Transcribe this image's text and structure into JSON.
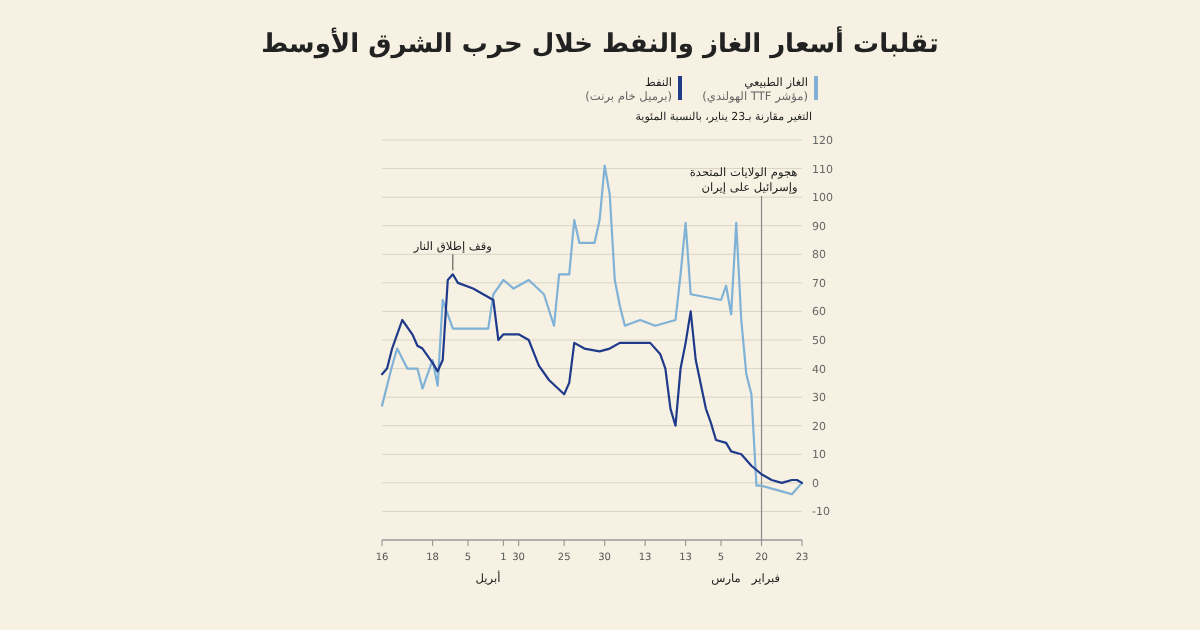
{
  "chart_data": {
    "type": "line",
    "title": "تقلبات أسعار الغاز والنفط خلال حرب الشرق الأوسط",
    "ylabel": "التغير مقارنة بـ23 يناير، بالنسبة المئوية",
    "xlim": [
      "--04-16",
      "--01-23"
    ],
    "xticks": [
      {
        "value": "--04-16",
        "label": "16"
      },
      {
        "value": "--04-06",
        "label": "18"
      },
      {
        "value": "--03-30",
        "label": "5"
      },
      {
        "value": "--03-23",
        "label": "1"
      },
      {
        "value": "--03-20",
        "label": "30"
      },
      {
        "value": "--03-11",
        "label": "25"
      },
      {
        "value": "--03-03",
        "label": "30"
      },
      {
        "value": "--02-23",
        "label": "13"
      },
      {
        "value": "--02-15",
        "label": "13"
      },
      {
        "value": "--02-08",
        "label": "5"
      },
      {
        "value": "--01-31",
        "label": "20"
      },
      {
        "value": "--01-23",
        "label": "23"
      }
    ],
    "ylim": [
      -20,
      120
    ],
    "yticks": [
      -10,
      0,
      10,
      20,
      30,
      40,
      50,
      60,
      70,
      80,
      90,
      100,
      110,
      120
    ],
    "grid": "y",
    "legend": "top right",
    "marker": "none",
    "line_style": "solid",
    "series": [
      {
        "name": "الغاز الطبيعي (مؤشر TTF الهولندي)",
        "color": "#7fb2d6",
        "x": [
          "--01-23",
          "--01-24",
          "--01-25",
          "--01-27",
          "--01-31",
          "--02-01",
          "--02-02",
          "--02-03",
          "--02-04",
          "--02-05",
          "--02-06",
          "--02-07",
          "--02-08",
          "--02-14",
          "--02-15",
          "--02-16",
          "--02-17",
          "--02-21",
          "--02-24",
          "--02-27",
          "--02-28",
          "--03-01",
          "--03-02",
          "--03-03",
          "--03-04",
          "--03-05",
          "--03-08",
          "--03-09",
          "--03-10",
          "--03-12",
          "--03-13",
          "--03-15",
          "--03-18",
          "--03-21",
          "--03-23",
          "--03-25",
          "--03-26",
          "--04-02",
          "--04-04",
          "--04-05",
          "--04-06",
          "--04-08",
          "--04-09",
          "--04-11",
          "--04-13",
          "--04-14",
          "--04-16"
        ],
        "values": [
          0,
          -2,
          -4,
          -3,
          -1,
          -1,
          31,
          38,
          57,
          91,
          59,
          69,
          64,
          66,
          91,
          73,
          57,
          55,
          57,
          55,
          62,
          71,
          101,
          111,
          92,
          84,
          84,
          92,
          73,
          73,
          55,
          66,
          71,
          68,
          71,
          66,
          54,
          54,
          64,
          34,
          43,
          33,
          40,
          40,
          47,
          41,
          27
        ]
      },
      {
        "name": "النفط (برميل خام برنت)",
        "color": "#1f3a8a",
        "x": [
          "--01-23",
          "--01-24",
          "--01-25",
          "--01-27",
          "--01-29",
          "--01-31",
          "--02-02",
          "--02-04",
          "--02-06",
          "--02-07",
          "--02-09",
          "--02-10",
          "--02-11",
          "--02-13",
          "--02-14",
          "--02-15",
          "--02-16",
          "--02-17",
          "--02-18",
          "--02-19",
          "--02-20",
          "--02-22",
          "--02-26",
          "--02-28",
          "--03-02",
          "--03-04",
          "--03-07",
          "--03-09",
          "--03-10",
          "--03-11",
          "--03-14",
          "--03-16",
          "--03-18",
          "--03-20",
          "--03-23",
          "--03-24",
          "--03-25",
          "--03-29",
          "--04-01",
          "--04-02",
          "--04-03",
          "--04-04",
          "--04-05",
          "--04-06",
          "--04-08",
          "--04-09",
          "--04-10",
          "--04-12",
          "--04-14",
          "--04-15",
          "--04-16"
        ],
        "values": [
          0,
          1,
          1,
          0,
          1,
          3,
          6,
          10,
          11,
          14,
          15,
          21,
          26,
          43,
          60,
          49,
          40,
          20,
          26,
          40,
          45,
          49,
          49,
          49,
          47,
          46,
          47,
          49,
          35,
          31,
          36,
          41,
          50,
          52,
          52,
          50,
          64,
          68,
          70,
          73,
          71,
          43,
          39,
          42,
          47,
          48,
          52,
          57,
          47,
          40,
          38
        ]
      }
    ],
    "ref_lines": [
      {
        "axis": "x",
        "value": "--01-31",
        "label": "هجوم الولايات المتحدة وإسرائيل على إيران"
      }
    ],
    "annotations": [
      {
        "text": "وقف إطلاق النار",
        "x": "--04-02",
        "y": 73
      },
      "أبريل",
      "مارس",
      "فبراير"
    ]
  }
}
